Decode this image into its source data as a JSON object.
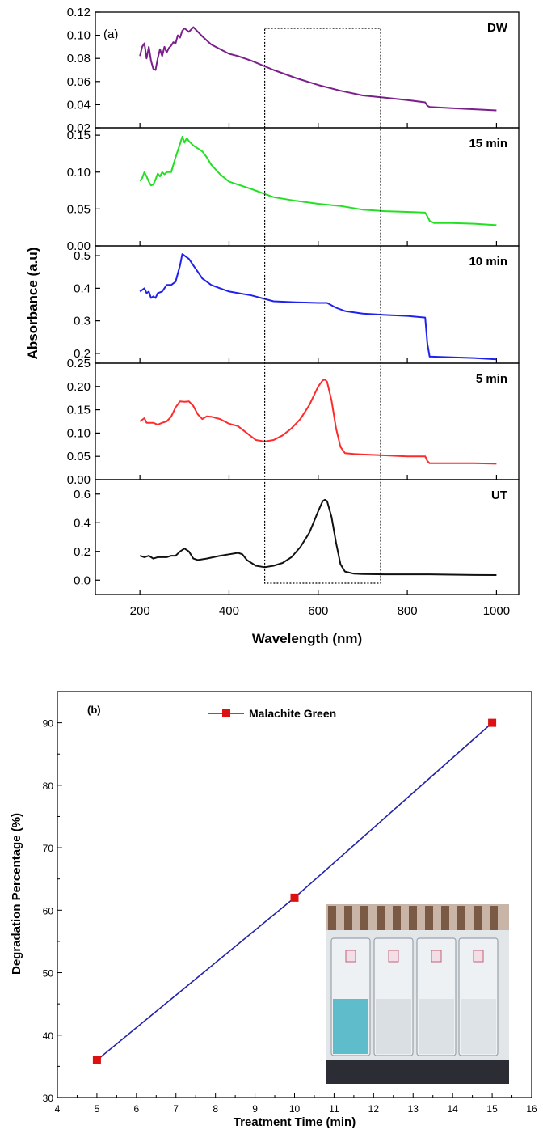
{
  "chart_data": [
    {
      "type": "line",
      "panel_label": "(a)",
      "xlabel": "Wavelength (nm)",
      "ylabel": "Absorbance (a.u)",
      "x_ticks": [
        200,
        400,
        600,
        800,
        1000
      ],
      "xlim": [
        100,
        1050
      ],
      "highlight_box_x": [
        480,
        740
      ],
      "panels": [
        {
          "name": "DW",
          "color": "#7b1f8c",
          "ylim": [
            0.02,
            0.12
          ],
          "y_ticks": [
            "0.02",
            "0.04",
            "0.06",
            "0.08",
            "0.10",
            "0.12"
          ],
          "x": [
            200,
            205,
            210,
            215,
            220,
            225,
            230,
            235,
            240,
            245,
            250,
            255,
            260,
            265,
            270,
            275,
            280,
            285,
            290,
            295,
            300,
            310,
            320,
            330,
            340,
            360,
            380,
            400,
            420,
            450,
            500,
            550,
            600,
            650,
            700,
            750,
            800,
            840,
            845,
            850,
            900,
            950,
            1000
          ],
          "y": [
            0.082,
            0.09,
            0.093,
            0.08,
            0.09,
            0.078,
            0.071,
            0.07,
            0.08,
            0.088,
            0.082,
            0.09,
            0.085,
            0.089,
            0.091,
            0.094,
            0.093,
            0.1,
            0.098,
            0.104,
            0.106,
            0.103,
            0.107,
            0.103,
            0.099,
            0.092,
            0.088,
            0.084,
            0.082,
            0.078,
            0.07,
            0.063,
            0.057,
            0.052,
            0.048,
            0.046,
            0.044,
            0.042,
            0.039,
            0.038,
            0.037,
            0.036,
            0.035
          ]
        },
        {
          "name": "15 min",
          "color": "#22e022",
          "ylim": [
            0.0,
            0.16
          ],
          "y_ticks": [
            "0.00",
            "0.05",
            "0.10",
            "0.15"
          ],
          "x": [
            200,
            205,
            210,
            215,
            220,
            225,
            230,
            235,
            240,
            245,
            250,
            255,
            260,
            265,
            270,
            280,
            290,
            295,
            300,
            305,
            310,
            320,
            330,
            340,
            350,
            360,
            380,
            400,
            450,
            500,
            550,
            600,
            650,
            700,
            750,
            800,
            840,
            845,
            850,
            860,
            900,
            950,
            1000
          ],
          "y": [
            0.088,
            0.092,
            0.1,
            0.094,
            0.087,
            0.082,
            0.083,
            0.09,
            0.098,
            0.094,
            0.1,
            0.097,
            0.1,
            0.1,
            0.1,
            0.12,
            0.138,
            0.148,
            0.14,
            0.146,
            0.142,
            0.136,
            0.132,
            0.128,
            0.12,
            0.11,
            0.097,
            0.087,
            0.077,
            0.066,
            0.061,
            0.057,
            0.054,
            0.049,
            0.047,
            0.046,
            0.045,
            0.04,
            0.034,
            0.031,
            0.031,
            0.03,
            0.028
          ]
        },
        {
          "name": "10 min",
          "color": "#1f22ee",
          "ylim": [
            0.17,
            0.53
          ],
          "y_ticks": [
            "0.2",
            "0.3",
            "0.4",
            "0.5"
          ],
          "x": [
            200,
            210,
            215,
            220,
            225,
            230,
            235,
            240,
            250,
            260,
            270,
            280,
            290,
            295,
            300,
            310,
            320,
            330,
            340,
            360,
            380,
            400,
            450,
            500,
            550,
            600,
            620,
            640,
            660,
            700,
            750,
            800,
            840,
            845,
            850,
            855,
            900,
            950,
            1000
          ],
          "y": [
            0.39,
            0.4,
            0.385,
            0.39,
            0.37,
            0.375,
            0.37,
            0.385,
            0.39,
            0.41,
            0.41,
            0.42,
            0.47,
            0.505,
            0.5,
            0.49,
            0.47,
            0.45,
            0.43,
            0.41,
            0.4,
            0.39,
            0.378,
            0.36,
            0.357,
            0.355,
            0.355,
            0.34,
            0.33,
            0.322,
            0.318,
            0.315,
            0.31,
            0.23,
            0.19,
            0.19,
            0.188,
            0.186,
            0.182
          ]
        },
        {
          "name": "5 min",
          "color": "#ff2a2a",
          "ylim": [
            0.0,
            0.25
          ],
          "y_ticks": [
            "0.00",
            "0.05",
            "0.10",
            "0.15",
            "0.20",
            "0.25"
          ],
          "x": [
            200,
            210,
            215,
            220,
            230,
            240,
            250,
            260,
            270,
            280,
            290,
            300,
            310,
            320,
            330,
            340,
            350,
            360,
            380,
            400,
            420,
            440,
            460,
            480,
            500,
            520,
            540,
            560,
            580,
            600,
            610,
            615,
            620,
            630,
            640,
            650,
            660,
            680,
            700,
            750,
            800,
            840,
            845,
            850,
            900,
            950,
            1000
          ],
          "y": [
            0.125,
            0.132,
            0.122,
            0.122,
            0.122,
            0.118,
            0.122,
            0.125,
            0.135,
            0.155,
            0.168,
            0.167,
            0.168,
            0.158,
            0.14,
            0.13,
            0.136,
            0.135,
            0.13,
            0.12,
            0.115,
            0.1,
            0.085,
            0.082,
            0.085,
            0.095,
            0.11,
            0.13,
            0.16,
            0.2,
            0.213,
            0.215,
            0.21,
            0.17,
            0.11,
            0.07,
            0.057,
            0.055,
            0.054,
            0.052,
            0.05,
            0.05,
            0.04,
            0.035,
            0.035,
            0.035,
            0.034
          ]
        },
        {
          "name": "UT",
          "color": "#111111",
          "ylim": [
            -0.1,
            0.7
          ],
          "y_ticks": [
            "0.0",
            "0.2",
            "0.4",
            "0.6"
          ],
          "x": [
            200,
            210,
            220,
            230,
            240,
            250,
            260,
            270,
            280,
            290,
            300,
            310,
            320,
            330,
            350,
            380,
            400,
            420,
            430,
            440,
            460,
            480,
            500,
            520,
            540,
            560,
            580,
            600,
            610,
            615,
            620,
            630,
            640,
            650,
            660,
            680,
            700,
            750,
            800,
            850,
            900,
            950,
            1000
          ],
          "y": [
            0.17,
            0.16,
            0.17,
            0.15,
            0.16,
            0.16,
            0.16,
            0.17,
            0.17,
            0.2,
            0.22,
            0.2,
            0.15,
            0.14,
            0.15,
            0.17,
            0.18,
            0.19,
            0.18,
            0.14,
            0.1,
            0.09,
            0.1,
            0.12,
            0.16,
            0.23,
            0.33,
            0.48,
            0.55,
            0.56,
            0.55,
            0.44,
            0.26,
            0.11,
            0.06,
            0.045,
            0.042,
            0.04,
            0.04,
            0.04,
            0.038,
            0.036,
            0.035
          ]
        }
      ]
    },
    {
      "type": "line",
      "panel_label": "(b)",
      "xlabel": "Treatment Time (min)",
      "ylabel": "Degradation Percentage (%)",
      "xlim": [
        4,
        16
      ],
      "ylim": [
        30,
        95
      ],
      "x_ticks": [
        4,
        5,
        6,
        7,
        8,
        9,
        10,
        11,
        12,
        13,
        14,
        15,
        16
      ],
      "y_ticks": [
        30,
        40,
        50,
        60,
        70,
        80,
        90
      ],
      "legend_position": "top",
      "series": [
        {
          "name": "Malachite Green",
          "color": "#2323a8",
          "marker_color": "#dd1111",
          "x": [
            5,
            10,
            15
          ],
          "y": [
            36,
            62,
            90
          ]
        }
      ]
    }
  ]
}
